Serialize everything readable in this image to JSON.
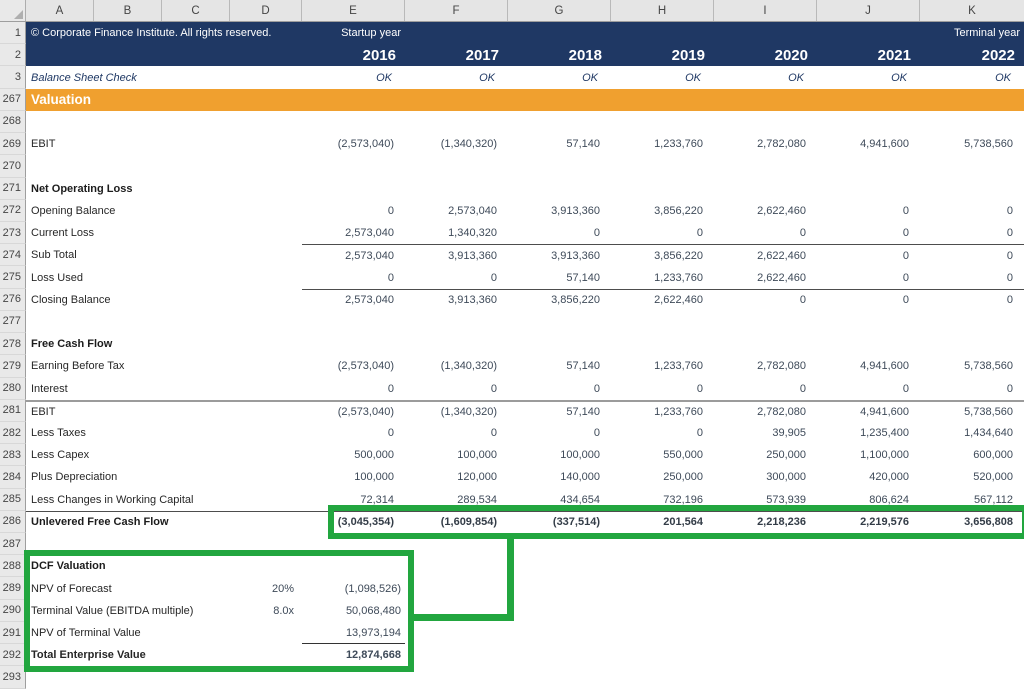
{
  "app": {
    "title": "Corporate Finance Institute startup financial model - Valuation (Excel)"
  },
  "columns": [
    "A",
    "B",
    "C",
    "D",
    "E",
    "F",
    "G",
    "H",
    "I",
    "J",
    "K"
  ],
  "header": {
    "row1_num": "1",
    "row2_num": "2",
    "copyright": "© Corporate Finance Institute. All rights reserved.",
    "startup_label": "Startup year",
    "terminal_label": "Terminal year",
    "years": [
      "2016",
      "2017",
      "2018",
      "2019",
      "2020",
      "2021",
      "2022"
    ]
  },
  "check": {
    "row": "3",
    "label": "Balance Sheet Check",
    "values": [
      "OK",
      "OK",
      "OK",
      "OK",
      "OK",
      "OK",
      "OK"
    ]
  },
  "banner": {
    "row": "267",
    "label": "Valuation"
  },
  "grid": {
    "rows": [
      {
        "n": "268"
      },
      {
        "n": "269",
        "label": "EBIT",
        "values": [
          "(2,573,040)",
          "(1,340,320)",
          "57,140",
          "1,233,760",
          "2,782,080",
          "4,941,600",
          "5,738,560"
        ]
      },
      {
        "n": "270"
      },
      {
        "n": "271",
        "label": "Net Operating Loss",
        "bold": true
      },
      {
        "n": "272",
        "label": "Opening Balance",
        "values": [
          "0",
          "2,573,040",
          "3,913,360",
          "3,856,220",
          "2,622,460",
          "0",
          "0"
        ]
      },
      {
        "n": "273",
        "label": "Current Loss",
        "values": [
          "2,573,040",
          "1,340,320",
          "0",
          "0",
          "0",
          "0",
          "0"
        ]
      },
      {
        "n": "274",
        "label": "Sub Total",
        "border": "thin-values",
        "values": [
          "2,573,040",
          "3,913,360",
          "3,913,360",
          "3,856,220",
          "2,622,460",
          "0",
          "0"
        ]
      },
      {
        "n": "275",
        "label": "Loss Used",
        "values": [
          "0",
          "0",
          "57,140",
          "1,233,760",
          "2,622,460",
          "0",
          "0"
        ]
      },
      {
        "n": "276",
        "label": "Closing Balance",
        "border": "thin-values",
        "values": [
          "2,573,040",
          "3,913,360",
          "3,856,220",
          "2,622,460",
          "0",
          "0",
          "0"
        ]
      },
      {
        "n": "277"
      },
      {
        "n": "278",
        "label": "Free Cash Flow",
        "bold": true
      },
      {
        "n": "279",
        "label": "Earning Before Tax",
        "values": [
          "(2,573,040)",
          "(1,340,320)",
          "57,140",
          "1,233,760",
          "2,782,080",
          "4,941,600",
          "5,738,560"
        ]
      },
      {
        "n": "280",
        "label": "Interest",
        "values": [
          "0",
          "0",
          "0",
          "0",
          "0",
          "0",
          "0"
        ]
      },
      {
        "n": "281",
        "label": "EBIT",
        "border": "thick-full",
        "values": [
          "(2,573,040)",
          "(1,340,320)",
          "57,140",
          "1,233,760",
          "2,782,080",
          "4,941,600",
          "5,738,560"
        ]
      },
      {
        "n": "282",
        "label": "Less Taxes",
        "values": [
          "0",
          "0",
          "0",
          "0",
          "39,905",
          "1,235,400",
          "1,434,640"
        ]
      },
      {
        "n": "283",
        "label": "Less Capex",
        "values": [
          "500,000",
          "100,000",
          "100,000",
          "550,000",
          "250,000",
          "1,100,000",
          "600,000"
        ]
      },
      {
        "n": "284",
        "label": "Plus Depreciation",
        "values": [
          "100,000",
          "120,000",
          "140,000",
          "250,000",
          "300,000",
          "420,000",
          "520,000"
        ]
      },
      {
        "n": "285",
        "label": "Less Changes in Working Capital",
        "values": [
          "72,314",
          "289,534",
          "434,654",
          "732,196",
          "573,939",
          "806,624",
          "567,112"
        ]
      },
      {
        "n": "286",
        "label": "Unlevered Free Cash Flow",
        "bold": true,
        "border": "thin-full",
        "values": [
          "(3,045,354)",
          "(1,609,854)",
          "(337,514)",
          "201,564",
          "2,218,236",
          "2,219,576",
          "3,656,808"
        ]
      },
      {
        "n": "287"
      },
      {
        "n": "288",
        "label": "DCF Valuation",
        "bold": true
      },
      {
        "n": "289",
        "dcf": true,
        "label": "NPV of Forecast",
        "param": "20%",
        "value": "(1,098,526)"
      },
      {
        "n": "290",
        "dcf": true,
        "label": "Terminal Value (EBITDA multiple)",
        "param": "8.0x",
        "value": "50,068,480"
      },
      {
        "n": "291",
        "dcf": true,
        "label": "NPV of Terminal Value",
        "param": "",
        "value": "13,973,194",
        "underline": true
      },
      {
        "n": "292",
        "dcf": true,
        "label": "Total Enterprise Value",
        "param": "",
        "value": "12,874,668",
        "bold": true
      },
      {
        "n": "293"
      }
    ]
  },
  "colors": {
    "navy_header": "#1F3864",
    "orange_banner": "#F0A02F",
    "highlight_green": "#22A63F"
  }
}
